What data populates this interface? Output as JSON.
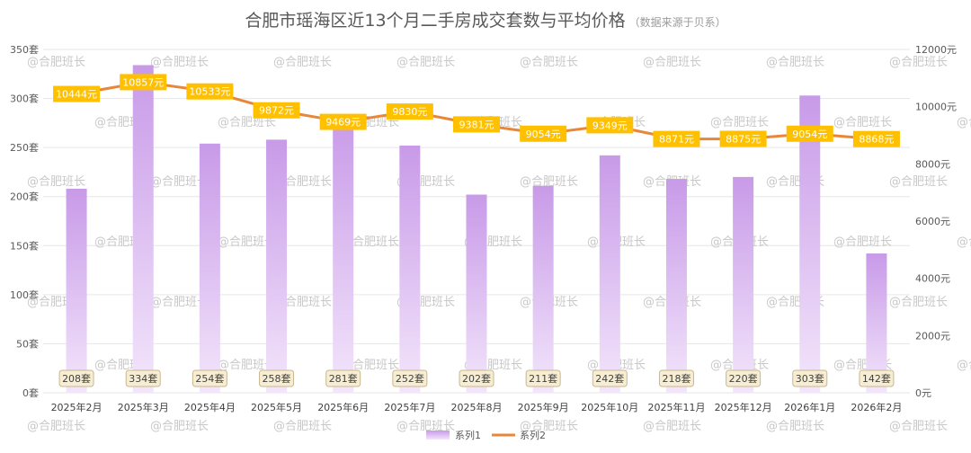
{
  "title": "合肥市瑶海区近13个月二手房成交套数与平均价格",
  "subtitle": "（数据来源于贝系）",
  "watermark": "@合肥班长",
  "colors": {
    "bar_top": "#c89ae8",
    "bar_bottom": "#f3e6fb",
    "line": "#e8873a",
    "price_label_bg": "#ffc000",
    "count_label_bg": "#f6edd3",
    "count_label_border": "#c8b891",
    "grid": "#e6e6e6"
  },
  "chart_data": {
    "type": "bar+line",
    "categories": [
      "2025年2月",
      "2025年3月",
      "2025年4月",
      "2025年5月",
      "2025年6月",
      "2025年7月",
      "2025年8月",
      "2025年9月",
      "2025年10月",
      "2025年11月",
      "2025年12月",
      "2026年1月",
      "2026年2月"
    ],
    "series": [
      {
        "name": "系列1",
        "type": "bar",
        "axis": "left",
        "values": [
          208,
          334,
          254,
          258,
          281,
          252,
          202,
          211,
          242,
          218,
          220,
          303,
          142
        ],
        "labels": [
          "208套",
          "334套",
          "254套",
          "258套",
          "281套",
          "252套",
          "202套",
          "211套",
          "242套",
          "218套",
          "220套",
          "303套",
          "142套"
        ]
      },
      {
        "name": "系列2",
        "type": "line",
        "axis": "right",
        "values": [
          10444,
          10857,
          10533,
          9872,
          9469,
          9830,
          9381,
          9054,
          9349,
          8871,
          8875,
          9054,
          8868
        ],
        "labels": [
          "10444元",
          "10857元",
          "10533元",
          "9872元",
          "9469元",
          "9830元",
          "9381元",
          "9054元",
          "9349元",
          "8871元",
          "8875元",
          "9054元",
          "8868元"
        ]
      }
    ],
    "y_left": {
      "min": 0,
      "max": 350,
      "ticks": [
        0,
        50,
        100,
        150,
        200,
        250,
        300,
        350
      ],
      "tick_labels": [
        "0套",
        "50套",
        "100套",
        "150套",
        "200套",
        "250套",
        "300套",
        "350套"
      ]
    },
    "y_right": {
      "min": 0,
      "max": 12000,
      "ticks": [
        0,
        2000,
        4000,
        6000,
        8000,
        10000,
        12000
      ],
      "tick_labels": [
        "0元",
        "2000元",
        "4000元",
        "6000元",
        "8000元",
        "10000元",
        "12000元"
      ]
    },
    "grid": true,
    "legend_position": "bottom"
  }
}
